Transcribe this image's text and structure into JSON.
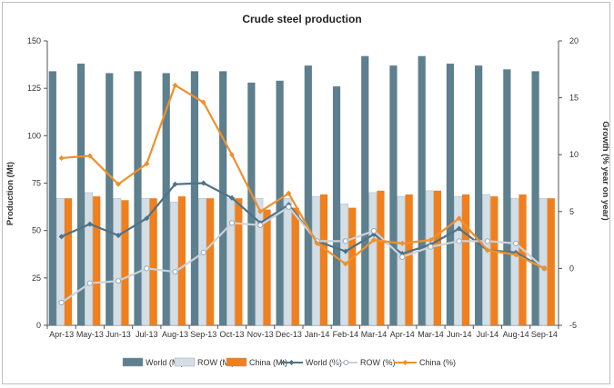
{
  "chart_data": {
    "type": "bar",
    "title": "Crude steel production",
    "ylabel": "Production (Mt)",
    "y2label": "Growth (% year on year)",
    "ylim": [
      0,
      150
    ],
    "y2lim": [
      -5,
      20
    ],
    "yticks": [
      "0",
      "25",
      "50",
      "75",
      "100",
      "125",
      "150"
    ],
    "y2ticks": [
      "-5",
      "0",
      "5",
      "10",
      "15",
      "20"
    ],
    "categories": [
      "Apr-13",
      "May-13",
      "Jun-13",
      "Jul-13",
      "Aug-13",
      "Sep-13",
      "Oct-13",
      "Nov-13",
      "Dec-13",
      "Jan-14",
      "Feb-14",
      "Mar-14",
      "Apr-14",
      "Mar-14",
      "Jun-14",
      "Jul-14",
      "Aug-14",
      "Sep-14"
    ],
    "series": [
      {
        "name": "World (Mt)",
        "kind": "bar",
        "axis": "left",
        "color": "#5d7f8e",
        "values": [
          134,
          138,
          133,
          134,
          133,
          134,
          134,
          128,
          129,
          137,
          126,
          142,
          137,
          142,
          138,
          137,
          135,
          134
        ]
      },
      {
        "name": "ROW (Mt)",
        "kind": "bar",
        "axis": "left",
        "color": "#d3dee6",
        "values": [
          67,
          70,
          67,
          67,
          65,
          67,
          67,
          67,
          67,
          68,
          64,
          70,
          68,
          71,
          68,
          69,
          67,
          67
        ]
      },
      {
        "name": "China (Mt)",
        "kind": "bar",
        "axis": "left",
        "color": "#f07f1e",
        "values": [
          67,
          68,
          66,
          67,
          68,
          67,
          67,
          61,
          62,
          69,
          62,
          71,
          69,
          71,
          69,
          68,
          69,
          67
        ]
      },
      {
        "name": "World (%)",
        "kind": "line",
        "axis": "right",
        "color": "#4e7388",
        "marker": "diamond",
        "values": [
          2.8,
          3.9,
          2.9,
          4.4,
          7.4,
          7.5,
          6.2,
          4.0,
          5.6,
          2.4,
          1.5,
          3.0,
          1.3,
          2.1,
          3.5,
          1.6,
          1.4,
          0.0
        ]
      },
      {
        "name": "ROW (%)",
        "kind": "line",
        "axis": "right",
        "color": "#c9d3dc",
        "marker": "circle",
        "values": [
          -3.0,
          -1.3,
          -1.1,
          0.0,
          -0.3,
          1.4,
          4.0,
          3.8,
          5.4,
          2.4,
          2.4,
          3.3,
          1.0,
          1.9,
          2.4,
          2.4,
          2.2,
          0.0
        ]
      },
      {
        "name": "China (%)",
        "kind": "line",
        "axis": "right",
        "color": "#f0902b",
        "marker": "diamond",
        "values": [
          9.7,
          9.9,
          7.4,
          9.2,
          16.1,
          14.6,
          10.0,
          5.0,
          6.6,
          2.2,
          0.4,
          2.5,
          2.2,
          2.5,
          4.4,
          1.6,
          1.2,
          0.0
        ]
      }
    ],
    "legend_position": "bottom",
    "grid": false
  }
}
